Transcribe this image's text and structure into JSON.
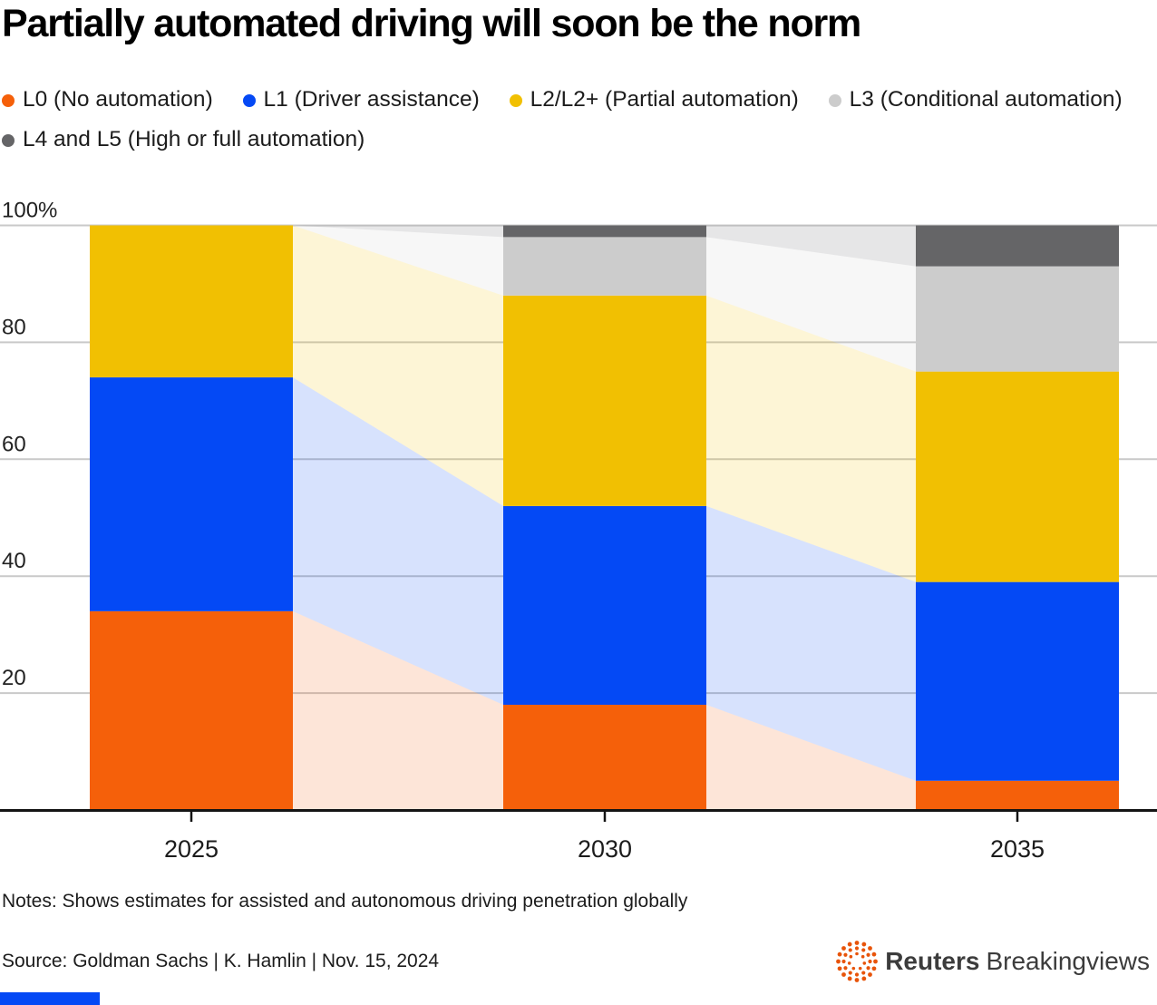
{
  "title": "Partially automated driving will soon be the norm",
  "legend": [
    {
      "label": "L0 (No automation)",
      "color": "#f5600a"
    },
    {
      "label": "L1 (Driver assistance)",
      "color": "#0449f5"
    },
    {
      "label": "L2/L2+ (Partial automation)",
      "color": "#f1c002"
    },
    {
      "label": "L3 (Conditional automation)",
      "color": "#cccccc"
    },
    {
      "label": "L4 and L5 (High or full automation)",
      "color": "#656567"
    }
  ],
  "chart_data": {
    "type": "bar",
    "subtype": "stacked-percent-with-area-connectors",
    "categories": [
      "2025",
      "2030",
      "2035"
    ],
    "series": [
      {
        "name": "L0 (No automation)",
        "color": "#f5600a",
        "values": [
          34,
          18,
          5
        ]
      },
      {
        "name": "L1 (Driver assistance)",
        "color": "#0449f5",
        "values": [
          40,
          34,
          34
        ]
      },
      {
        "name": "L2/L2+ (Partial automation)",
        "color": "#f1c002",
        "values": [
          26,
          36,
          36
        ]
      },
      {
        "name": "L3 (Conditional automation)",
        "color": "#cccccc",
        "values": [
          0,
          10,
          18
        ]
      },
      {
        "name": "L4 and L5 (High or full automation)",
        "color": "#656567",
        "values": [
          0,
          2,
          7
        ]
      }
    ],
    "unit": "%",
    "ylim": [
      0,
      100
    ],
    "y_ticks": [
      {
        "value": 100,
        "label": "100%"
      },
      {
        "value": 80,
        "label": "80"
      },
      {
        "value": 60,
        "label": "60"
      },
      {
        "value": 40,
        "label": "40"
      },
      {
        "value": 20,
        "label": "20"
      }
    ],
    "grid": true,
    "legend_position": "top"
  },
  "notes": "Notes: Shows estimates for assisted and autonomous driving penetration globally",
  "source": "Source: Goldman Sachs | K. Hamlin | Nov. 15, 2024",
  "branding": {
    "reuters": "Reuters",
    "breakingviews": "Breakingviews",
    "logo_color": "#e8540a",
    "text_color": "#3c3c3c",
    "accent_bar_color": "#0449f5"
  }
}
